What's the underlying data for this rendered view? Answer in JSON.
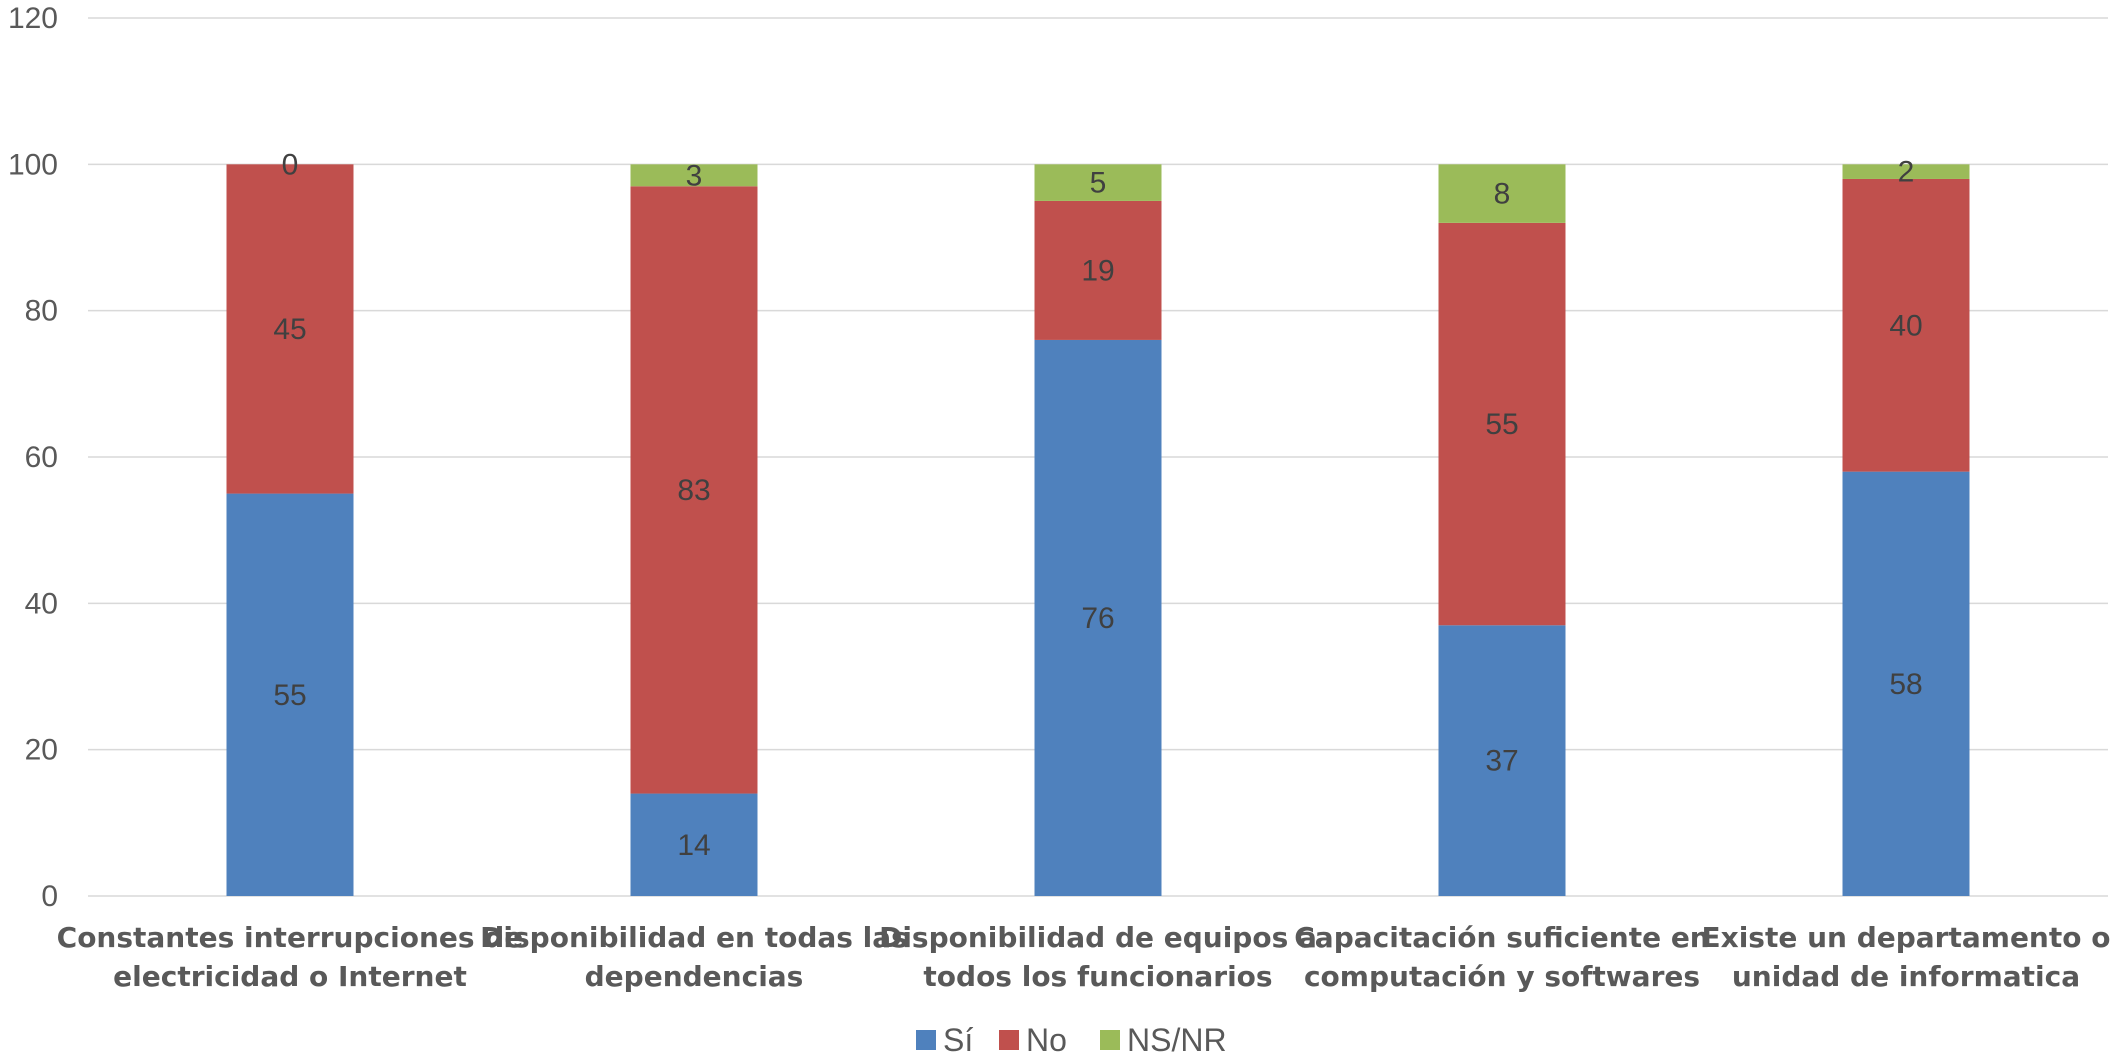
{
  "chart_data": {
    "type": "bar",
    "stacked": true,
    "title": "",
    "xlabel": "",
    "ylabel": "",
    "ylim": [
      0,
      120
    ],
    "y_ticks": [
      "0",
      "20",
      "40",
      "60",
      "80",
      "100",
      "120"
    ],
    "grid": true,
    "legend_position": "bottom",
    "categories": [
      [
        "Constantes interrupciones de",
        "electricidad o Internet"
      ],
      [
        "Disponibilidad en todas las",
        "dependencias"
      ],
      [
        "Disponibilidad de equipos a",
        "todos los funcionarios"
      ],
      [
        "Capacitación suficiente en",
        "computación y softwares"
      ],
      [
        "Existe un departamento o",
        "unidad de informatica"
      ]
    ],
    "series": [
      {
        "name": "Sí",
        "color": "#4f81bd",
        "values": [
          55,
          14,
          76,
          37,
          58
        ]
      },
      {
        "name": "No",
        "color": "#c0504d",
        "values": [
          45,
          83,
          19,
          55,
          40
        ]
      },
      {
        "name": "NS/NR",
        "color": "#9bbb59",
        "values": [
          0,
          3,
          5,
          8,
          2
        ]
      }
    ]
  }
}
